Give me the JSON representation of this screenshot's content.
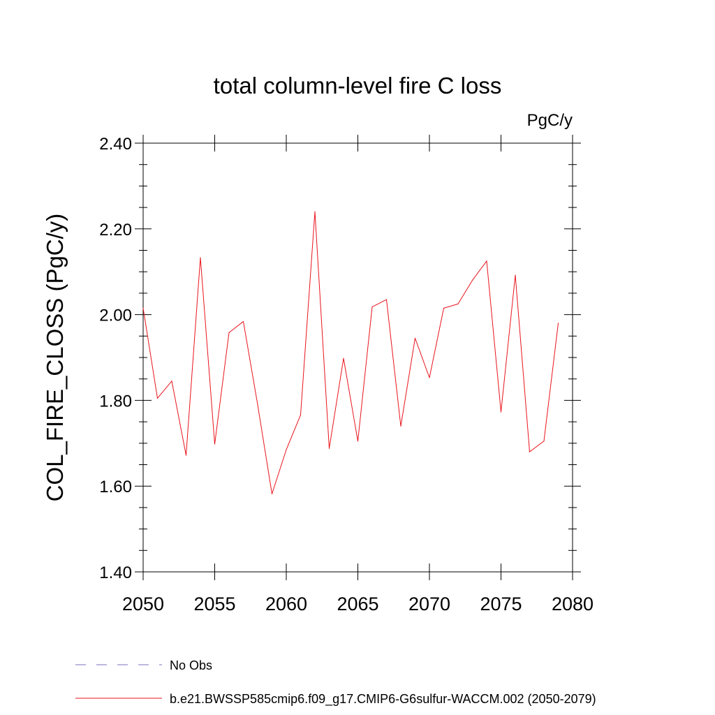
{
  "chart_data": {
    "type": "line",
    "title": "total column-level fire C loss",
    "units_label": "PgC/y",
    "ylabel": "COL_FIRE_CLOSS  (PgC/y)",
    "xlabel": "",
    "xlim": [
      2050,
      2080
    ],
    "ylim": [
      1.4,
      2.4
    ],
    "x_ticks": [
      "2050",
      "2055",
      "2060",
      "2065",
      "2070",
      "2075",
      "2080"
    ],
    "y_ticks": [
      "1.40",
      "1.60",
      "1.80",
      "2.00",
      "2.20",
      "2.40"
    ],
    "grid": false,
    "x": [
      2050,
      2051,
      2052,
      2053,
      2054,
      2055,
      2056,
      2057,
      2058,
      2059,
      2060,
      2061,
      2062,
      2063,
      2064,
      2065,
      2066,
      2067,
      2068,
      2069,
      2070,
      2071,
      2072,
      2073,
      2074,
      2075,
      2076,
      2077,
      2078,
      2079
    ],
    "series": [
      {
        "name": "b.e21.BWSSP585cmip6.f09_g17.CMIP6-G6sulfur-WACCM.002 (2050-2079)",
        "color": "#e8141c",
        "values": [
          2.015,
          1.805,
          1.845,
          1.672,
          2.133,
          1.698,
          1.958,
          1.984,
          1.79,
          1.582,
          1.685,
          1.766,
          2.24,
          1.688,
          1.898,
          1.705,
          2.018,
          2.035,
          1.74,
          1.945,
          1.853,
          2.015,
          2.025,
          2.08,
          2.125,
          1.773,
          2.092,
          1.68,
          1.705,
          1.98
        ]
      }
    ],
    "legend": [
      {
        "label": "No Obs",
        "style": "dashed",
        "color": "#7b6fbf"
      },
      {
        "label": "b.e21.BWSSP585cmip6.f09_g17.CMIP6-G6sulfur-WACCM.002 (2050-2079)",
        "style": "solid",
        "color": "#e8141c"
      }
    ],
    "legend_position": "bottom-left"
  }
}
